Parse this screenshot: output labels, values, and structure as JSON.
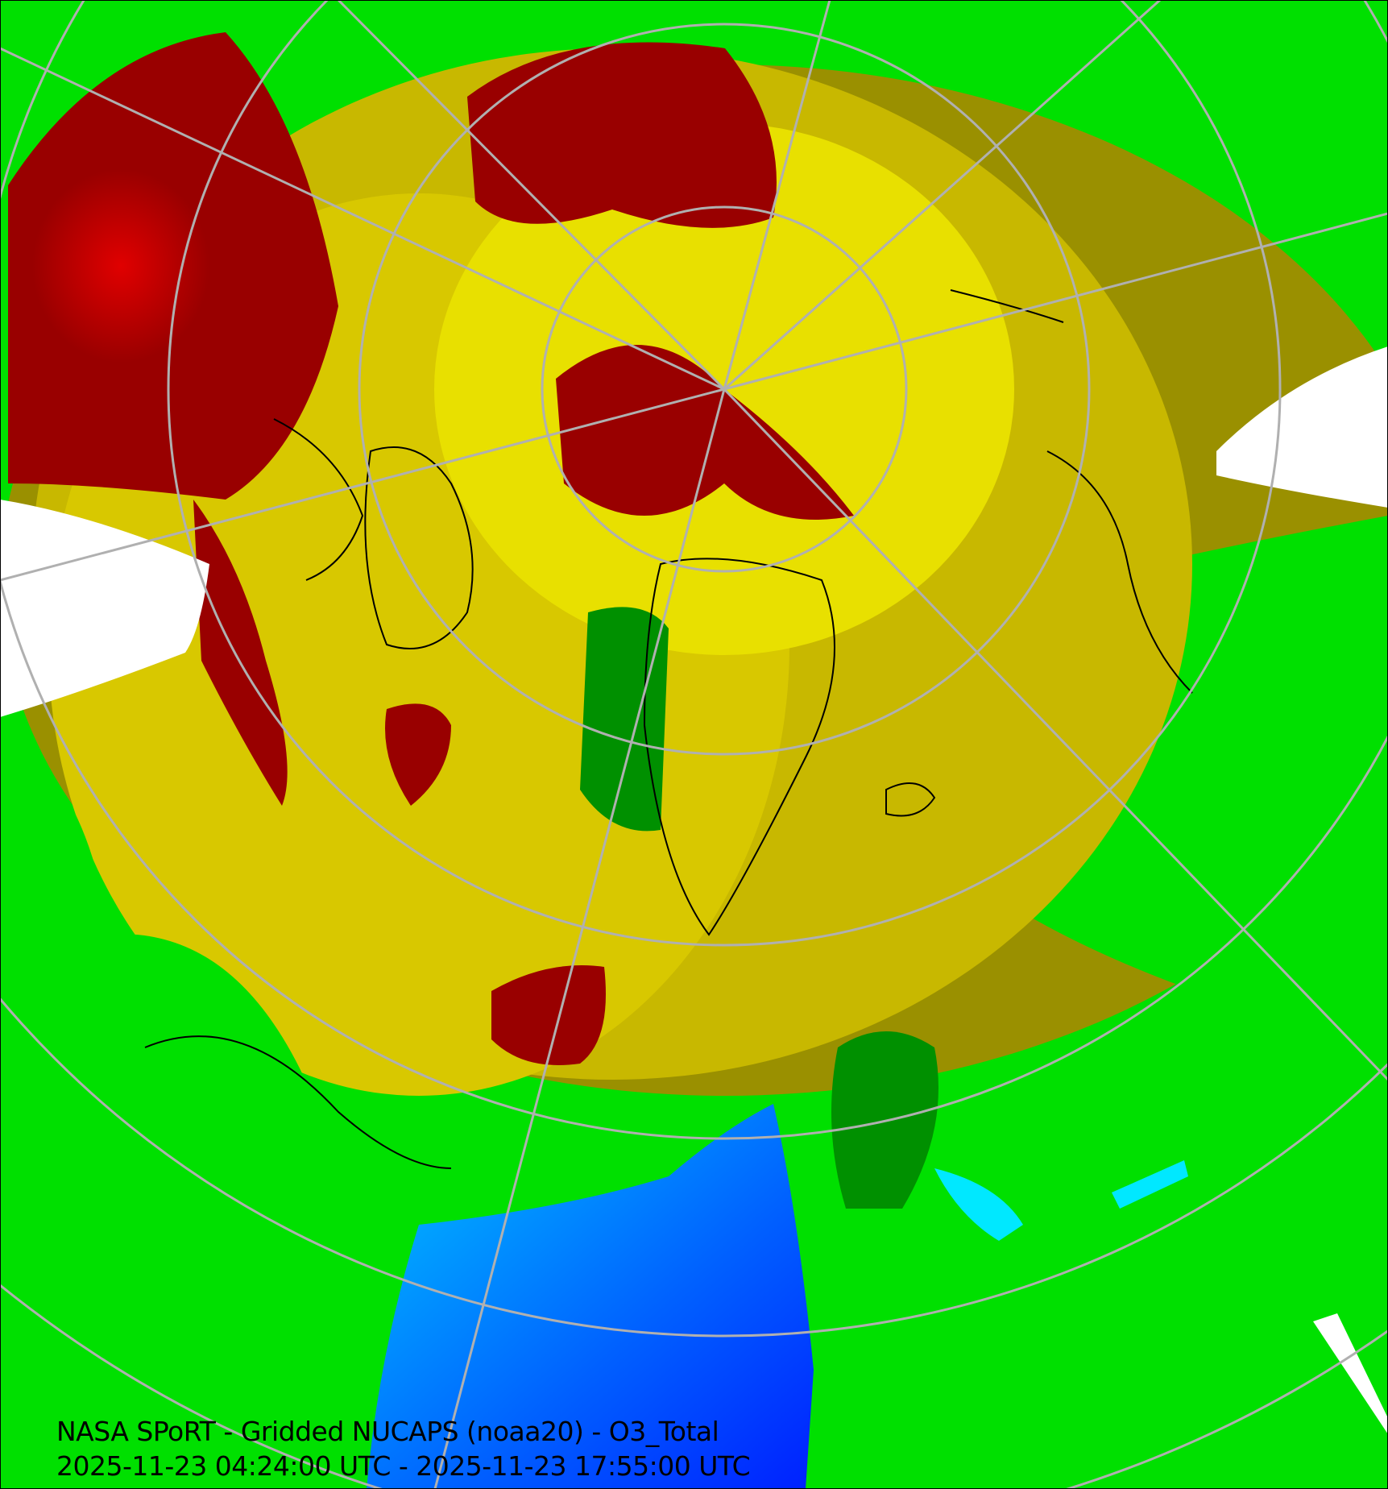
{
  "product": {
    "title": "NASA SPoRT - Gridded NUCAPS (noaa20) - O3_Total",
    "time_range": "2025-11-23 04:24:00 UTC - 2025-11-23 17:55:00 UTC"
  },
  "map": {
    "projection": "north-polar-stereographic",
    "field": "O3_Total",
    "graticule": "on",
    "colors": {
      "low_blue": "#0040ff",
      "cyan": "#00e8ff",
      "dark_green": "#009000",
      "green": "#00e000",
      "olive": "#9a9000",
      "gold": "#c8b800",
      "yellow": "#f0f000",
      "dark_red": "#990000",
      "red": "#e00000",
      "no_data": "#ffffff",
      "graticule": "#b0b0b0",
      "coastline": "#000000"
    }
  }
}
